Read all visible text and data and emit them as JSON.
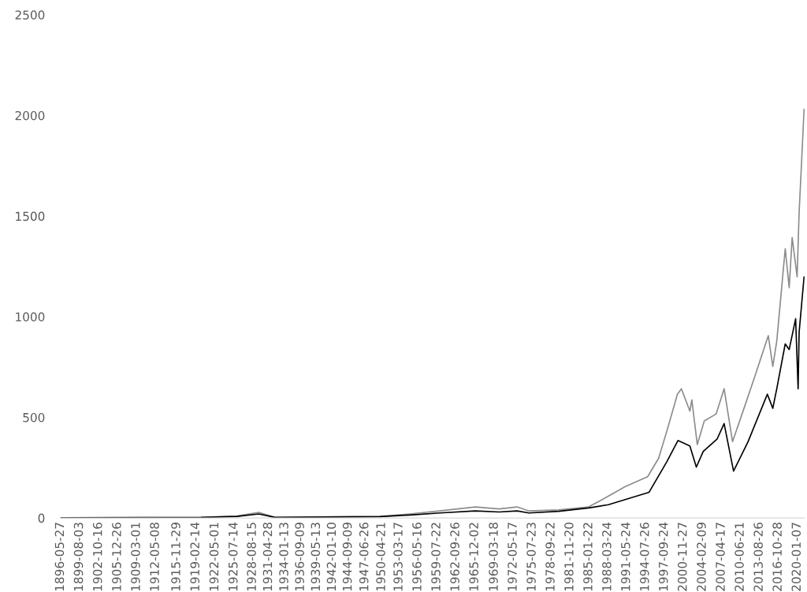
{
  "chart_data": {
    "type": "line",
    "ylim": [
      0,
      2500
    ],
    "yticks": [
      0,
      500,
      1000,
      1500,
      2000,
      2500
    ],
    "xlim": [
      "1896-05-27",
      "2021-04"
    ],
    "xticks": [
      "1896-05-27",
      "1899-08-03",
      "1902-10-16",
      "1905-12-26",
      "1909-03-01",
      "1912-05-08",
      "1915-11-29",
      "1919-02-14",
      "1922-05-01",
      "1925-07-14",
      "1928-08-15",
      "1931-04-28",
      "1934-01-13",
      "1936-09-09",
      "1939-05-13",
      "1942-01-10",
      "1944-09-09",
      "1947-06-26",
      "1950-04-21",
      "1953-03-17",
      "1956-05-16",
      "1959-07-22",
      "1962-09-26",
      "1965-12-02",
      "1969-03-18",
      "1972-05-17",
      "1975-07-23",
      "1978-09-22",
      "1981-11-20",
      "1985-01-22",
      "1988-03-24",
      "1991-05-24",
      "1994-07-26",
      "1997-09-24",
      "2000-11-27",
      "2004-02-09",
      "2007-04-17",
      "2010-06-21",
      "2013-08-26",
      "2016-10-28",
      "2020-01-07"
    ],
    "grid": false,
    "legend": false,
    "marker": "none",
    "line_style": "solid",
    "series": [
      {
        "color": "#8c8c8c",
        "x": [
          "1896-06",
          "1910-01",
          "1920-01",
          "1926-01",
          "1929-09",
          "1932-06",
          "1940-01",
          "1950-01",
          "1955-01",
          "1960-01",
          "1966-01",
          "1970-01",
          "1973-01",
          "1975-01",
          "1980-01",
          "1985-01",
          "1987-01",
          "1991-03",
          "1994-12",
          "1996-10",
          "1998-03",
          "1999-12",
          "2000-08",
          "2002-01",
          "2002-05",
          "2003-04",
          "2004-06",
          "2006-06",
          "2007-10",
          "2009-03",
          "2011-04",
          "2013-01",
          "2015-03",
          "2015-12",
          "2016-08",
          "2018-01",
          "2018-09",
          "2019-03",
          "2020-01",
          "2020-05",
          "2020-11",
          "2021-03"
        ],
        "values": [
          1,
          2,
          3,
          10,
          28,
          3,
          5,
          8,
          20,
          35,
          55,
          45,
          55,
          35,
          40,
          55,
          87,
          156,
          205,
          296,
          434,
          615,
          642,
          531,
          587,
          365,
          482,
          517,
          642,
          379,
          559,
          712,
          906,
          753,
          879,
          1338,
          1144,
          1393,
          1198,
          1517,
          1824,
          2031
        ]
      },
      {
        "color": "#000000",
        "x": [
          "1896-06",
          "1910-01",
          "1920-01",
          "1926-01",
          "1929-09",
          "1932-06",
          "1940-01",
          "1950-01",
          "1955-01",
          "1960-01",
          "1966-01",
          "1970-01",
          "1973-01",
          "1975-01",
          "1980-01",
          "1985-01",
          "1988-05",
          "1995-03",
          "1998-03",
          "2000-01",
          "2002-01",
          "2003-02",
          "2004-04",
          "2006-08",
          "2007-10",
          "2009-05",
          "2011-10",
          "2015-01",
          "2015-12",
          "2016-08",
          "2018-01",
          "2018-09",
          "2019-10",
          "2020-03",
          "2020-05",
          "2021-03"
        ],
        "values": [
          1,
          2,
          3,
          8,
          20,
          3,
          5,
          7,
          15,
          25,
          35,
          30,
          35,
          25,
          33,
          50,
          66,
          128,
          281,
          385,
          358,
          253,
          331,
          393,
          469,
          233,
          378,
          615,
          545,
          642,
          865,
          837,
          990,
          642,
          922,
          1198
        ]
      }
    ]
  }
}
